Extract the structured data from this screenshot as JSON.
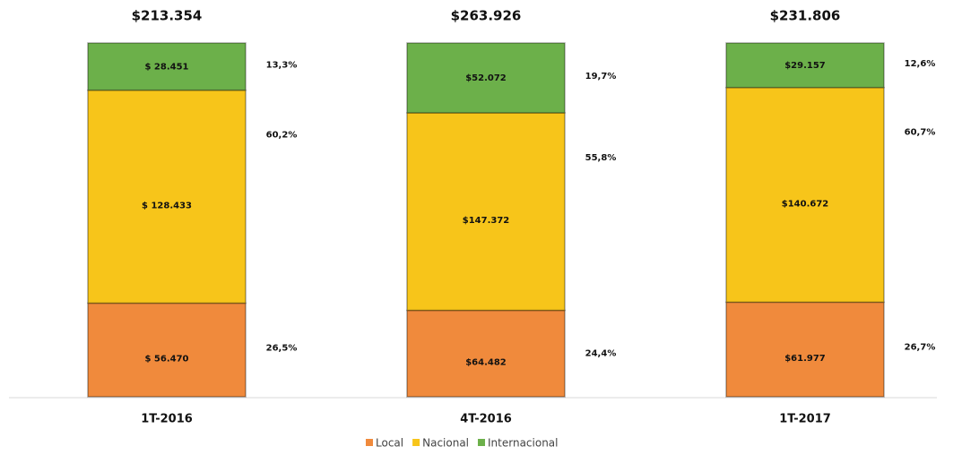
{
  "chart_data": {
    "type": "stacked_bar_100",
    "categories": [
      "1T-2016",
      "4T-2016",
      "1T-2017"
    ],
    "totals": [
      213354,
      263926,
      231806
    ],
    "total_labels": [
      "$213.354",
      "$263.926",
      "$231.806"
    ],
    "series": [
      {
        "name": "Local",
        "color": "#f08a3c",
        "values": [
          56470,
          64482,
          61977
        ],
        "value_labels": [
          "$ 56.470",
          "$64.482",
          "$61.977"
        ],
        "share_labels": [
          "26,5%",
          "24,4%",
          "26,7%"
        ]
      },
      {
        "name": "Nacional",
        "color": "#f7c51a",
        "values": [
          128433,
          147372,
          140672
        ],
        "value_labels": [
          "$ 128.433",
          "$147.372",
          "$140.672"
        ],
        "share_labels": [
          "60,2%",
          "55,8%",
          "60,7%"
        ]
      },
      {
        "name": "Internacional",
        "color": "#6cb04a",
        "values": [
          28451,
          52072,
          29157
        ],
        "value_labels": [
          "$ 28.451",
          "$52.072",
          "$29.157"
        ],
        "share_labels": [
          "13,3%",
          "19,7%",
          "12,6%"
        ]
      }
    ],
    "legend": "bottom"
  }
}
